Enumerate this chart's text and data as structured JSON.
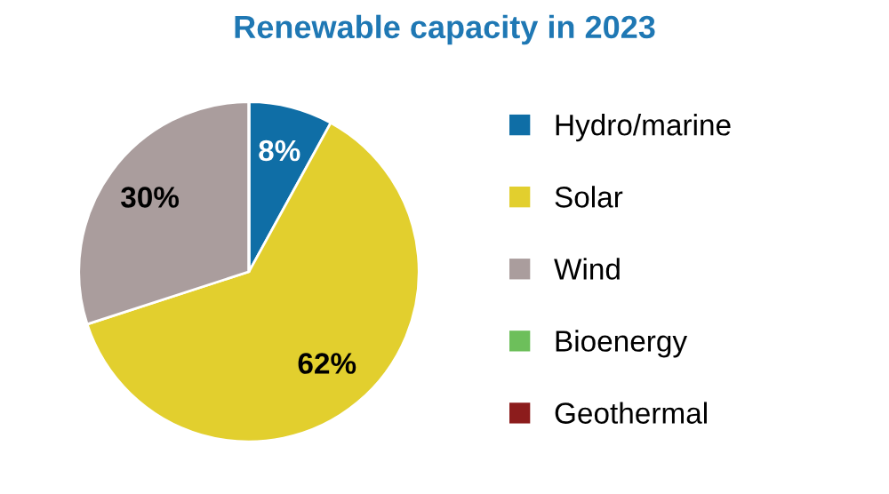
{
  "chart_data": {
    "type": "pie",
    "title": "Renewable capacity in 2023",
    "categories": [
      "Hydro/marine",
      "Solar",
      "Wind",
      "Bioenergy",
      "Geothermal"
    ],
    "values": [
      8,
      62,
      30,
      0,
      0
    ],
    "value_labels": [
      "8%",
      "62%",
      "30%",
      null,
      null
    ],
    "colors": [
      "#0f6ea6",
      "#e2cf2e",
      "#aa9d9d",
      "#6dbf5b",
      "#8c1c1c"
    ],
    "legend": "right"
  }
}
